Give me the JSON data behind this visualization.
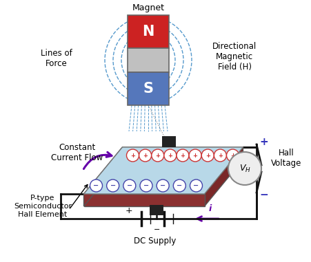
{
  "bg_color": "#ffffff",
  "N_color": "#cc2222",
  "S_color": "#5577bb",
  "gray_color": "#c0c0c0",
  "plate_color": "#8b3030",
  "plate_top_color": "#b8d8e8",
  "arrow_color": "#6600aa",
  "field_line_color": "#5599cc",
  "wire_color": "#111111",
  "label_magnet": "Magnet",
  "label_lines_of_force": "Lines of\nForce",
  "label_directional": "Directional\nMagnetic\nField (H)",
  "label_constant": "Constant\nCurrent Flow",
  "label_ptype": "P-type\nSemiconductor\nHall Element",
  "label_hall_voltage": "Hall\nVoltage",
  "label_dc": "DC Supply",
  "plus_color": "#3333bb",
  "minus_color": "#3333bb",
  "charge_plus_color": "#cc3333",
  "charge_minus_color": "#4444aa"
}
